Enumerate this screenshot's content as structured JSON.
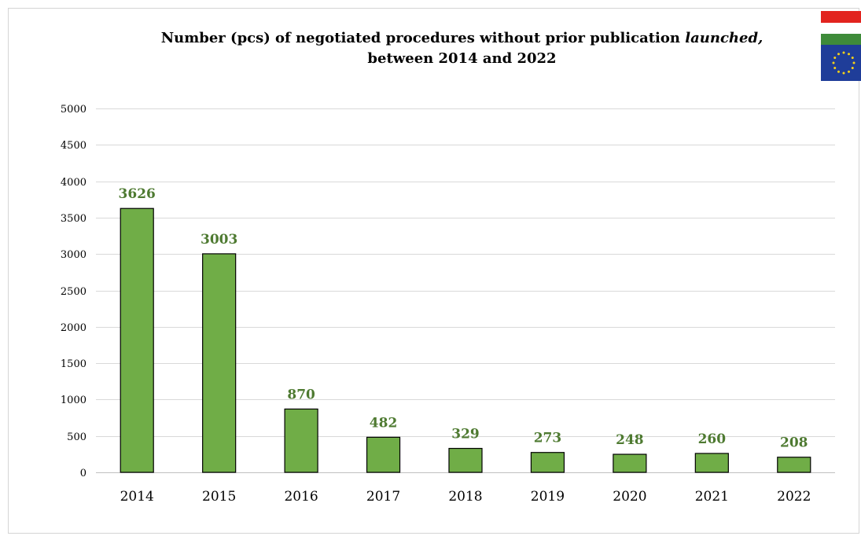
{
  "title": {
    "line1_start": "Number (pcs) of negotiated procedures without prior publication ",
    "line1_emph": "launched,",
    "line2": "between 2014 and 2022"
  },
  "flags": [
    "hungary-flag-icon",
    "eu-flag-icon"
  ],
  "colors": {
    "bar": "#70ad47",
    "bar_stroke": "#000000",
    "label": "#4e7a31",
    "grid": "#d9d9d9",
    "axis": "#bfbfbf"
  },
  "chart_data": {
    "type": "bar",
    "categories": [
      "2014",
      "2015",
      "2016",
      "2017",
      "2018",
      "2019",
      "2020",
      "2021",
      "2022"
    ],
    "values": [
      3626,
      3003,
      870,
      482,
      329,
      273,
      248,
      260,
      208
    ],
    "data_labels": [
      "3626",
      "3003",
      "870",
      "482",
      "329",
      "273",
      "248",
      "260",
      "208"
    ],
    "ylim": [
      0,
      5000
    ],
    "yticks": [
      0,
      500,
      1000,
      1500,
      2000,
      2500,
      3000,
      3500,
      4000,
      4500,
      5000
    ],
    "ytick_labels": [
      "0",
      "500",
      "1000",
      "1500",
      "2000",
      "2500",
      "3000",
      "3500",
      "4000",
      "4500",
      "5000"
    ],
    "grid": true,
    "xlabel": "",
    "ylabel": ""
  }
}
